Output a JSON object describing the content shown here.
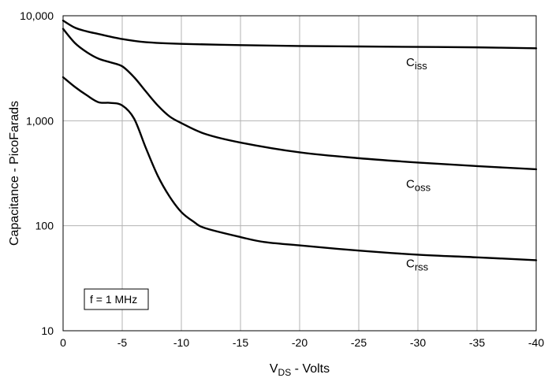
{
  "chart_data": {
    "type": "line",
    "xlabel": {
      "main": "V",
      "sub": "DS",
      "rest": " - Volts"
    },
    "ylabel": "Capacitance - PicoFarads",
    "xlim": [
      0,
      -40
    ],
    "ylim": [
      10,
      10000
    ],
    "yscale": "log",
    "grid": true,
    "x_ticks": [
      0,
      -5,
      -10,
      -15,
      -20,
      -25,
      -30,
      -35,
      -40
    ],
    "x_tick_labels": [
      "0",
      "-5",
      "-10",
      "-15",
      "-20",
      "-25",
      "-30",
      "-35",
      "-40"
    ],
    "y_ticks": [
      10,
      100,
      1000,
      10000
    ],
    "y_tick_labels": [
      "10",
      "100",
      "1,000",
      "10,000"
    ],
    "annotation": "f = 1 MHz",
    "series": [
      {
        "label_main": "C",
        "label_sub": "iss",
        "x": [
          0,
          -1,
          -2,
          -3,
          -5,
          -7,
          -10,
          -15,
          -20,
          -25,
          -30,
          -35,
          -40
        ],
        "y": [
          9000,
          7700,
          7100,
          6700,
          6000,
          5600,
          5400,
          5250,
          5150,
          5100,
          5050,
          5000,
          4900
        ]
      },
      {
        "label_main": "C",
        "label_sub": "oss",
        "x": [
          0,
          -1,
          -2,
          -3,
          -4,
          -5,
          -6,
          -7,
          -8,
          -9,
          -10,
          -12,
          -15,
          -20,
          -25,
          -30,
          -35,
          -40
        ],
        "y": [
          7500,
          5500,
          4500,
          3900,
          3600,
          3300,
          2600,
          1900,
          1400,
          1100,
          950,
          750,
          620,
          500,
          440,
          400,
          370,
          345
        ]
      },
      {
        "label_main": "C",
        "label_sub": "rss",
        "x": [
          0,
          -1,
          -2,
          -3,
          -4,
          -5,
          -6,
          -7,
          -8,
          -9,
          -10,
          -11,
          -12,
          -15,
          -17,
          -20,
          -25,
          -30,
          -35,
          -40
        ],
        "y": [
          2600,
          2100,
          1750,
          1500,
          1480,
          1400,
          1050,
          550,
          300,
          190,
          135,
          110,
          95,
          78,
          70,
          65,
          58,
          53,
          50,
          47
        ]
      }
    ]
  }
}
